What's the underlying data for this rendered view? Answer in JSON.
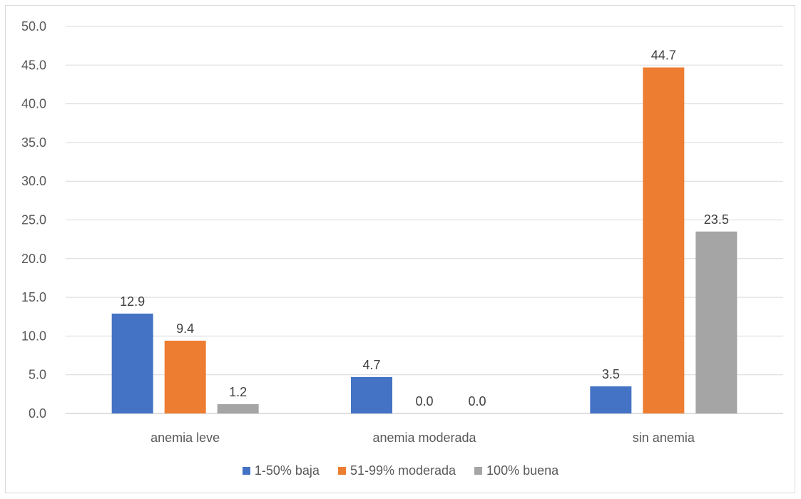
{
  "chart_data": {
    "type": "bar",
    "title": "",
    "xlabel": "",
    "ylabel": "",
    "categories": [
      "anemia leve",
      "anemia moderada",
      "sin anemia"
    ],
    "series": [
      {
        "name": "1-50% baja",
        "color": "#4472C4",
        "values": [
          12.9,
          4.7,
          3.5
        ],
        "labels": [
          "12.9",
          "4.7",
          "3.5"
        ]
      },
      {
        "name": "51-99% moderada",
        "color": "#ED7D31",
        "values": [
          9.4,
          0.0,
          44.7
        ],
        "labels": [
          "9.4",
          "0.0",
          "44.7"
        ]
      },
      {
        "name": "100% buena",
        "color": "#A5A5A5",
        "values": [
          1.2,
          0.0,
          23.5
        ],
        "labels": [
          "1.2",
          "0.0",
          "23.5"
        ]
      }
    ],
    "ylim": [
      0,
      50
    ],
    "yticks": [
      "0.0",
      "5.0",
      "10.0",
      "15.0",
      "20.0",
      "25.0",
      "30.0",
      "35.0",
      "40.0",
      "45.0",
      "50.0"
    ],
    "grid": true,
    "legend_position": "bottom"
  }
}
